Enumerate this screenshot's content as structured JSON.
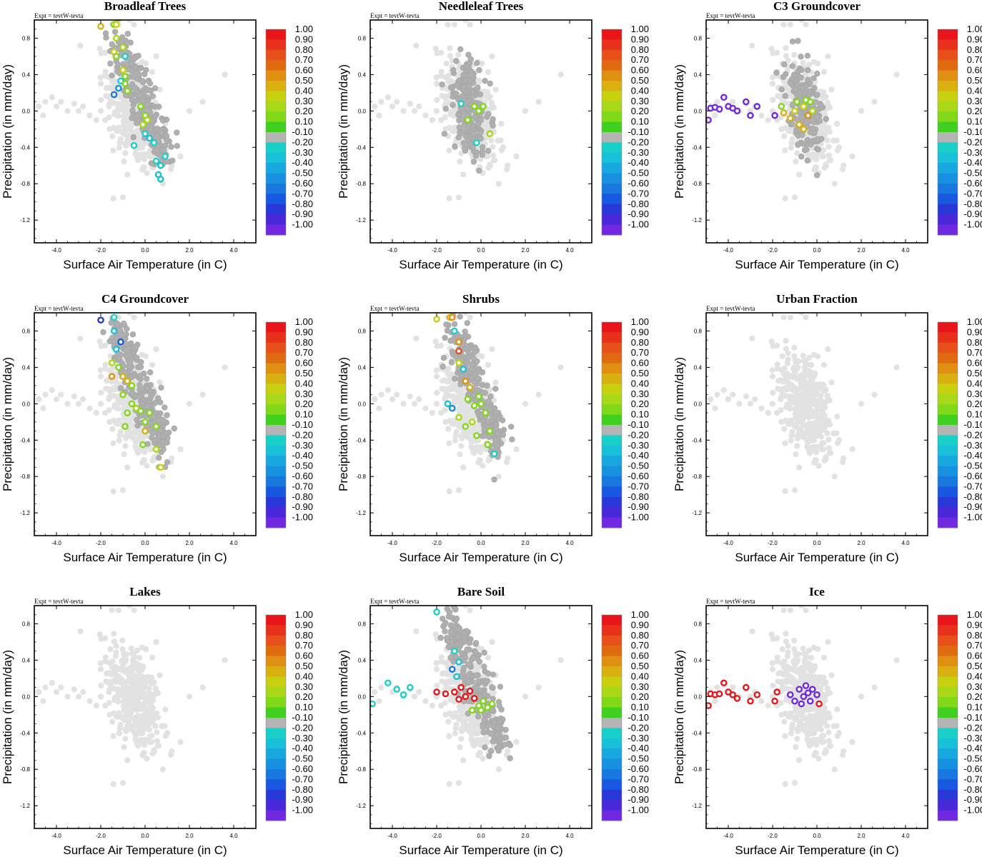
{
  "figure": {
    "expt_label": "Expt = tevtW-tevta",
    "xlabel": "Surface Air Temperature (in C)",
    "ylabel": "Precipitation (in mm/day)",
    "x_ticks": [
      "-4.0",
      "-2.0",
      "0.0",
      "2.0",
      "4.0"
    ],
    "y_ticks": [
      "0.8",
      "0.4",
      "0.0",
      "-0.4",
      "-0.8",
      "-1.2"
    ],
    "colorbar_labels": [
      "1.00",
      "0.90",
      "0.80",
      "0.70",
      "0.60",
      "0.50",
      "0.40",
      "0.30",
      "0.20",
      "0.10",
      "-0.10",
      "-0.20",
      "-0.30",
      "-0.40",
      "-0.50",
      "-0.60",
      "-0.70",
      "-0.80",
      "-0.90",
      "-1.00"
    ],
    "colorbar_colors": [
      "#e8161b",
      "#e8311b",
      "#e8501b",
      "#e06a10",
      "#e09010",
      "#d8b010",
      "#c8d010",
      "#a8d818",
      "#80d818",
      "#40d020",
      "#b4b4b4",
      "#18d0c8",
      "#18c0d8",
      "#18a8e0",
      "#1890e0",
      "#1878e0",
      "#1858e0",
      "#2838d8",
      "#4828d8",
      "#7028e0"
    ]
  },
  "chart_data": [
    {
      "type": "scatter",
      "title": "Broadleaf Trees",
      "xlabel": "Surface Air Temperature (in C)",
      "ylabel": "Precipitation (in mm/day)",
      "xlim": [
        -5,
        5
      ],
      "ylim": [
        -1.45,
        1.0
      ],
      "highlight": [
        {
          "x": -2.0,
          "y": 0.93,
          "v": 0.45
        },
        {
          "x": -1.4,
          "y": 0.95,
          "v": 0.15
        },
        {
          "x": -1.3,
          "y": 0.95,
          "v": 0.35
        },
        {
          "x": -1.3,
          "y": 0.8,
          "v": 0.3
        },
        {
          "x": -1.4,
          "y": 0.65,
          "v": 0.35
        },
        {
          "x": -1.3,
          "y": 0.6,
          "v": 0.2
        },
        {
          "x": -1.0,
          "y": 0.7,
          "v": 0.25
        },
        {
          "x": -0.9,
          "y": 0.6,
          "v": -0.2
        },
        {
          "x": -1.0,
          "y": 0.45,
          "v": 0.35
        },
        {
          "x": -0.9,
          "y": 0.38,
          "v": 0.15
        },
        {
          "x": -1.1,
          "y": 0.33,
          "v": -0.2
        },
        {
          "x": -1.2,
          "y": 0.25,
          "v": -0.5
        },
        {
          "x": -1.4,
          "y": 0.18,
          "v": -0.6
        },
        {
          "x": -0.9,
          "y": 0.3,
          "v": 0.2
        },
        {
          "x": -0.8,
          "y": 0.22,
          "v": 0.15
        },
        {
          "x": 0.0,
          "y": -0.05,
          "v": 0.2
        },
        {
          "x": 0.1,
          "y": -0.1,
          "v": 0.3
        },
        {
          "x": -0.1,
          "y": -0.15,
          "v": 0.25
        },
        {
          "x": 0.2,
          "y": -0.3,
          "v": -0.3
        },
        {
          "x": 0.4,
          "y": -0.35,
          "v": -0.2
        },
        {
          "x": -0.5,
          "y": -0.38,
          "v": -0.25
        },
        {
          "x": 0.5,
          "y": -0.55,
          "v": -0.2
        },
        {
          "x": 0.7,
          "y": -0.6,
          "v": -0.3
        },
        {
          "x": 0.9,
          "y": -0.5,
          "v": -0.2
        },
        {
          "x": 0.7,
          "y": -0.75,
          "v": -0.3
        },
        {
          "x": 0.6,
          "y": -0.7,
          "v": -0.3
        },
        {
          "x": 0.0,
          "y": -0.25,
          "v": -0.25
        },
        {
          "x": -0.2,
          "y": 0.05,
          "v": 0.15
        }
      ],
      "cloud": "broad"
    },
    {
      "type": "scatter",
      "title": "Needleleaf Trees",
      "xlabel": "Surface Air Temperature (in C)",
      "ylabel": "Precipitation (in mm/day)",
      "xlim": [
        -5,
        5
      ],
      "ylim": [
        -1.45,
        1.0
      ],
      "highlight": [
        {
          "x": -0.9,
          "y": 0.08,
          "v": -0.2
        },
        {
          "x": -0.3,
          "y": 0.05,
          "v": 0.15
        },
        {
          "x": -0.1,
          "y": 0.0,
          "v": 0.2
        },
        {
          "x": 0.1,
          "y": 0.05,
          "v": 0.15
        },
        {
          "x": 0.4,
          "y": -0.25,
          "v": 0.25
        },
        {
          "x": -0.6,
          "y": -0.1,
          "v": 0.15
        },
        {
          "x": -0.2,
          "y": -0.35,
          "v": -0.2
        }
      ],
      "cloud": "mid"
    },
    {
      "type": "scatter",
      "title": "C3 Groundcover",
      "xlabel": "Surface Air Temperature (in C)",
      "ylabel": "Precipitation (in mm/day)",
      "xlim": [
        -5,
        5
      ],
      "ylim": [
        -1.45,
        1.0
      ],
      "highlight": [
        {
          "x": -4.9,
          "y": -0.1,
          "v": -0.95
        },
        {
          "x": -4.8,
          "y": 0.03,
          "v": -0.95
        },
        {
          "x": -4.6,
          "y": 0.04,
          "v": -0.95
        },
        {
          "x": -4.4,
          "y": 0.02,
          "v": -0.95
        },
        {
          "x": -4.2,
          "y": 0.15,
          "v": -0.95
        },
        {
          "x": -4.0,
          "y": 0.05,
          "v": -0.95
        },
        {
          "x": -3.8,
          "y": 0.03,
          "v": -0.95
        },
        {
          "x": -3.6,
          "y": 0.0,
          "v": -0.95
        },
        {
          "x": -3.2,
          "y": 0.1,
          "v": -0.95
        },
        {
          "x": -3.0,
          "y": -0.05,
          "v": -0.95
        },
        {
          "x": -2.7,
          "y": 0.05,
          "v": -0.95
        },
        {
          "x": -1.9,
          "y": -0.05,
          "v": -0.95
        },
        {
          "x": -1.5,
          "y": -0.02,
          "v": 0.45
        },
        {
          "x": -1.2,
          "y": -0.08,
          "v": 0.5
        },
        {
          "x": -1.0,
          "y": 0.0,
          "v": 0.4
        },
        {
          "x": -0.8,
          "y": -0.15,
          "v": 0.5
        },
        {
          "x": -0.6,
          "y": 0.05,
          "v": 0.35
        },
        {
          "x": -0.4,
          "y": -0.05,
          "v": 0.6
        },
        {
          "x": -0.2,
          "y": 0.0,
          "v": 0.3
        },
        {
          "x": -0.9,
          "y": 0.1,
          "v": 0.15
        },
        {
          "x": -0.6,
          "y": -0.2,
          "v": 0.45
        },
        {
          "x": -0.3,
          "y": 0.1,
          "v": 0.2
        },
        {
          "x": -1.6,
          "y": 0.05,
          "v": 0.2
        },
        {
          "x": -0.5,
          "y": 0.12,
          "v": 0.15
        }
      ],
      "cloud": "mid"
    },
    {
      "type": "scatter",
      "title": "C4 Groundcover",
      "xlabel": "Surface Air Temperature (in C)",
      "ylabel": "Precipitation (in mm/day)",
      "xlim": [
        -5,
        5
      ],
      "ylim": [
        -1.45,
        1.0
      ],
      "highlight": [
        {
          "x": -2.0,
          "y": 0.92,
          "v": -0.75
        },
        {
          "x": -1.4,
          "y": 0.95,
          "v": -0.25
        },
        {
          "x": -1.4,
          "y": 0.8,
          "v": -0.35
        },
        {
          "x": -1.1,
          "y": 0.68,
          "v": -0.7
        },
        {
          "x": -1.3,
          "y": 0.6,
          "v": -0.3
        },
        {
          "x": -1.5,
          "y": 0.45,
          "v": 0.3
        },
        {
          "x": -1.5,
          "y": 0.3,
          "v": 0.55
        },
        {
          "x": -1.2,
          "y": 0.4,
          "v": 0.15
        },
        {
          "x": -1.0,
          "y": 0.3,
          "v": 0.5
        },
        {
          "x": -0.8,
          "y": 0.25,
          "v": 0.45
        },
        {
          "x": -0.6,
          "y": 0.2,
          "v": 0.15
        },
        {
          "x": -1.0,
          "y": 0.1,
          "v": 0.2
        },
        {
          "x": -0.6,
          "y": 0.0,
          "v": 0.15
        },
        {
          "x": -0.4,
          "y": -0.05,
          "v": 0.3
        },
        {
          "x": -0.2,
          "y": -0.08,
          "v": 0.2
        },
        {
          "x": -0.8,
          "y": -0.1,
          "v": 0.15
        },
        {
          "x": 0.0,
          "y": -0.2,
          "v": 0.15
        },
        {
          "x": 0.2,
          "y": -0.1,
          "v": 0.2
        },
        {
          "x": 0.0,
          "y": -0.3,
          "v": 0.5
        },
        {
          "x": -0.1,
          "y": -0.45,
          "v": 0.15
        },
        {
          "x": 0.5,
          "y": -0.5,
          "v": 0.3
        },
        {
          "x": 0.7,
          "y": -0.7,
          "v": 0.35
        },
        {
          "x": 0.5,
          "y": -0.25,
          "v": 0.2
        },
        {
          "x": -0.9,
          "y": -0.25,
          "v": 0.15
        }
      ],
      "cloud": "broad"
    },
    {
      "type": "scatter",
      "title": "Shrubs",
      "xlabel": "Surface Air Temperature (in C)",
      "ylabel": "Precipitation (in mm/day)",
      "xlim": [
        -5,
        5
      ],
      "ylim": [
        -1.45,
        1.0
      ],
      "highlight": [
        {
          "x": -2.0,
          "y": 0.93,
          "v": 0.4
        },
        {
          "x": -1.4,
          "y": 0.95,
          "v": 0.45
        },
        {
          "x": -1.3,
          "y": 0.95,
          "v": 0.55
        },
        {
          "x": -1.2,
          "y": 0.8,
          "v": -0.25
        },
        {
          "x": -1.0,
          "y": 0.68,
          "v": 0.6
        },
        {
          "x": -1.0,
          "y": 0.58,
          "v": 0.75
        },
        {
          "x": -1.0,
          "y": 0.45,
          "v": 0.35
        },
        {
          "x": -0.8,
          "y": 0.38,
          "v": -0.3
        },
        {
          "x": -0.7,
          "y": 0.25,
          "v": 0.55
        },
        {
          "x": -0.5,
          "y": 0.18,
          "v": 0.45
        },
        {
          "x": -1.5,
          "y": 0.0,
          "v": -0.35
        },
        {
          "x": -1.3,
          "y": -0.05,
          "v": -0.5
        },
        {
          "x": -1.0,
          "y": -0.15,
          "v": 0.3
        },
        {
          "x": -0.6,
          "y": 0.05,
          "v": 0.15
        },
        {
          "x": -0.3,
          "y": -0.02,
          "v": 0.2
        },
        {
          "x": 0.0,
          "y": 0.0,
          "v": 0.15
        },
        {
          "x": 0.2,
          "y": -0.1,
          "v": 0.15
        },
        {
          "x": -0.4,
          "y": -0.2,
          "v": 0.3
        },
        {
          "x": -0.2,
          "y": -0.35,
          "v": 0.15
        },
        {
          "x": 0.3,
          "y": -0.45,
          "v": 0.2
        },
        {
          "x": 0.6,
          "y": -0.55,
          "v": -0.25
        },
        {
          "x": -0.7,
          "y": -0.25,
          "v": 0.2
        },
        {
          "x": 0.4,
          "y": -0.3,
          "v": 0.15
        },
        {
          "x": -0.1,
          "y": 0.08,
          "v": 0.15
        }
      ],
      "cloud": "broad"
    },
    {
      "type": "scatter",
      "title": "Urban Fraction",
      "xlabel": "Surface Air Temperature (in C)",
      "ylabel": "Precipitation (in mm/day)",
      "xlim": [
        -5,
        5
      ],
      "ylim": [
        -1.45,
        1.0
      ],
      "highlight": [],
      "cloud": "none"
    },
    {
      "type": "scatter",
      "title": "Lakes",
      "xlabel": "Surface Air Temperature (in C)",
      "ylabel": "Precipitation (in mm/day)",
      "xlim": [
        -5,
        5
      ],
      "ylim": [
        -1.45,
        1.0
      ],
      "highlight": [],
      "cloud": "none"
    },
    {
      "type": "scatter",
      "title": "Bare Soil",
      "xlabel": "Surface Air Temperature (in C)",
      "ylabel": "Precipitation (in mm/day)",
      "xlim": [
        -5,
        5
      ],
      "ylim": [
        -1.45,
        1.0
      ],
      "highlight": [
        {
          "x": -4.9,
          "y": -0.08,
          "v": -0.25
        },
        {
          "x": -4.2,
          "y": 0.15,
          "v": -0.25
        },
        {
          "x": -3.8,
          "y": 0.08,
          "v": -0.25
        },
        {
          "x": -3.5,
          "y": 0.02,
          "v": -0.25
        },
        {
          "x": -3.2,
          "y": 0.1,
          "v": -0.25
        },
        {
          "x": -2.0,
          "y": 0.93,
          "v": -0.25
        },
        {
          "x": -1.2,
          "y": 0.5,
          "v": -0.25
        },
        {
          "x": -1.0,
          "y": 0.38,
          "v": -0.3
        },
        {
          "x": -1.3,
          "y": 0.3,
          "v": -0.6
        },
        {
          "x": -1.1,
          "y": 0.22,
          "v": -0.3
        },
        {
          "x": -2.0,
          "y": 0.05,
          "v": 0.95
        },
        {
          "x": -1.6,
          "y": 0.03,
          "v": 0.95
        },
        {
          "x": -1.2,
          "y": 0.05,
          "v": 0.95
        },
        {
          "x": -0.9,
          "y": 0.1,
          "v": 0.95
        },
        {
          "x": -0.7,
          "y": 0.0,
          "v": 0.95
        },
        {
          "x": -0.5,
          "y": 0.06,
          "v": 0.95
        },
        {
          "x": -1.0,
          "y": -0.03,
          "v": 0.95
        },
        {
          "x": -0.3,
          "y": -0.02,
          "v": 0.95
        },
        {
          "x": -0.1,
          "y": -0.1,
          "v": 0.15
        },
        {
          "x": 0.1,
          "y": -0.05,
          "v": 0.15
        },
        {
          "x": 0.3,
          "y": -0.12,
          "v": 0.15
        },
        {
          "x": -0.4,
          "y": -0.15,
          "v": 0.15
        },
        {
          "x": 0.0,
          "y": -0.15,
          "v": 0.2
        },
        {
          "x": 0.5,
          "y": -0.08,
          "v": 0.15
        }
      ],
      "cloud": "broad"
    },
    {
      "type": "scatter",
      "title": "Ice",
      "xlabel": "Surface Air Temperature (in C)",
      "ylabel": "Precipitation (in mm/day)",
      "xlim": [
        -5,
        5
      ],
      "ylim": [
        -1.45,
        1.0
      ],
      "highlight": [
        {
          "x": -4.9,
          "y": -0.1,
          "v": 0.95
        },
        {
          "x": -4.8,
          "y": 0.03,
          "v": 0.95
        },
        {
          "x": -4.6,
          "y": 0.02,
          "v": 0.95
        },
        {
          "x": -4.4,
          "y": 0.03,
          "v": 0.95
        },
        {
          "x": -4.2,
          "y": 0.15,
          "v": 0.95
        },
        {
          "x": -4.0,
          "y": 0.05,
          "v": 0.95
        },
        {
          "x": -3.8,
          "y": 0.02,
          "v": 0.95
        },
        {
          "x": -3.6,
          "y": -0.02,
          "v": 0.95
        },
        {
          "x": -3.2,
          "y": 0.1,
          "v": 0.95
        },
        {
          "x": -3.0,
          "y": -0.05,
          "v": 0.95
        },
        {
          "x": -2.7,
          "y": 0.02,
          "v": 0.95
        },
        {
          "x": -1.9,
          "y": -0.05,
          "v": 0.95
        },
        {
          "x": -1.8,
          "y": 0.05,
          "v": 0.95
        },
        {
          "x": 0.1,
          "y": -0.08,
          "v": 0.95
        },
        {
          "x": -1.2,
          "y": 0.02,
          "v": -0.95
        },
        {
          "x": -1.0,
          "y": -0.05,
          "v": -0.95
        },
        {
          "x": -0.8,
          "y": 0.08,
          "v": -0.95
        },
        {
          "x": -0.6,
          "y": 0.0,
          "v": -0.95
        },
        {
          "x": -0.5,
          "y": 0.12,
          "v": -0.95
        },
        {
          "x": -0.3,
          "y": -0.05,
          "v": -0.95
        },
        {
          "x": -0.2,
          "y": 0.08,
          "v": -0.95
        },
        {
          "x": 0.0,
          "y": 0.02,
          "v": -0.95
        },
        {
          "x": -0.7,
          "y": -0.08,
          "v": -0.95
        },
        {
          "x": -0.4,
          "y": 0.04,
          "v": -0.95
        }
      ],
      "cloud": "none"
    }
  ]
}
